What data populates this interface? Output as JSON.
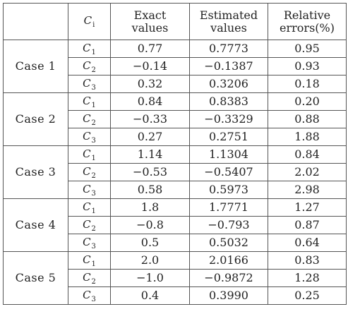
{
  "table": {
    "header": {
      "ci_symbol": "C",
      "ci_subscript": "i",
      "exact_line1": "Exact",
      "exact_line2": "values",
      "estimated_line1": "Estimated",
      "estimated_line2": "values",
      "relative_line1": "Relative",
      "relative_line2": "errors(%)"
    },
    "cases": [
      {
        "label": "Case 1",
        "rows": [
          {
            "c": "C",
            "sub": "1",
            "exact": "0.77",
            "estimated": "0.7773",
            "error": "0.95"
          },
          {
            "c": "C",
            "sub": "2",
            "exact": "−0.14",
            "estimated": "−0.1387",
            "error": "0.93"
          },
          {
            "c": "C",
            "sub": "3",
            "exact": "0.32",
            "estimated": "0.3206",
            "error": "0.18"
          }
        ]
      },
      {
        "label": "Case 2",
        "rows": [
          {
            "c": "C",
            "sub": "1",
            "exact": "0.84",
            "estimated": "0.8383",
            "error": "0.20"
          },
          {
            "c": "C",
            "sub": "2",
            "exact": "−0.33",
            "estimated": "−0.3329",
            "error": "0.88"
          },
          {
            "c": "C",
            "sub": "3",
            "exact": "0.27",
            "estimated": "0.2751",
            "error": "1.88"
          }
        ]
      },
      {
        "label": "Case 3",
        "rows": [
          {
            "c": "C",
            "sub": "1",
            "exact": "1.14",
            "estimated": "1.1304",
            "error": "0.84"
          },
          {
            "c": "C",
            "sub": "2",
            "exact": "−0.53",
            "estimated": "−0.5407",
            "error": "2.02"
          },
          {
            "c": "C",
            "sub": "3",
            "exact": "0.58",
            "estimated": "0.5973",
            "error": "2.98"
          }
        ]
      },
      {
        "label": "Case 4",
        "rows": [
          {
            "c": "C",
            "sub": "1",
            "exact": "1.8",
            "estimated": "1.7771",
            "error": "1.27"
          },
          {
            "c": "C",
            "sub": "2",
            "exact": "−0.8",
            "estimated": "−0.793",
            "error": "0.87"
          },
          {
            "c": "C",
            "sub": "3",
            "exact": "0.5",
            "estimated": "0.5032",
            "error": "0.64"
          }
        ]
      },
      {
        "label": "Case 5",
        "rows": [
          {
            "c": "C",
            "sub": "1",
            "exact": "2.0",
            "estimated": "2.0166",
            "error": "0.83"
          },
          {
            "c": "C",
            "sub": "2",
            "exact": "−1.0",
            "estimated": "−0.9872",
            "error": "1.28"
          },
          {
            "c": "C",
            "sub": "3",
            "exact": "0.4",
            "estimated": "0.3990",
            "error": "0.25"
          }
        ]
      }
    ]
  }
}
